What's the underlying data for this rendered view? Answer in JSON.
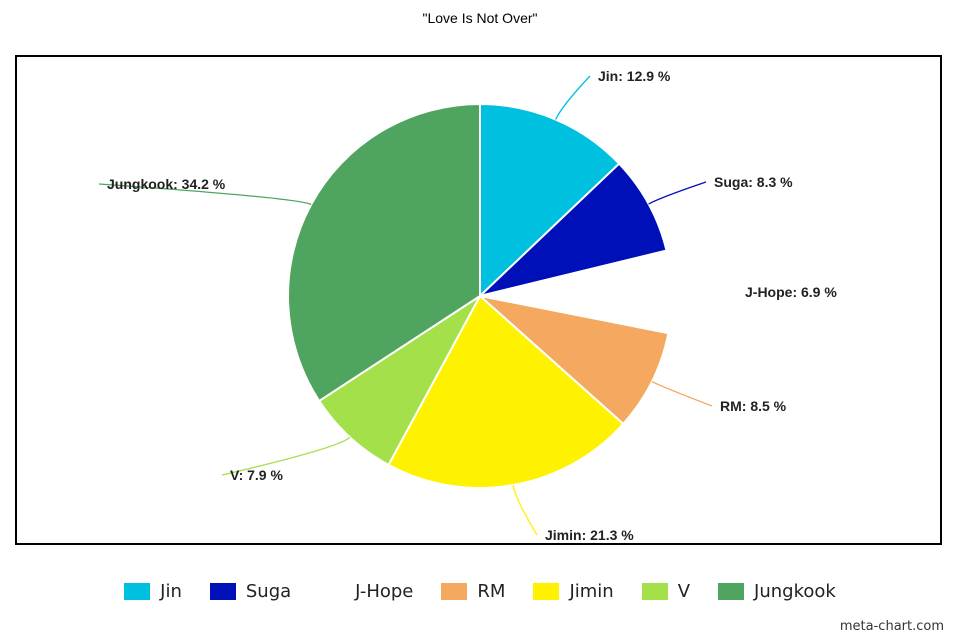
{
  "chart_data": {
    "type": "pie",
    "title": "\"Love Is Not Over\"",
    "slices": [
      {
        "name": "Jin",
        "value": 12.9,
        "label": "Jin: 12.9 %",
        "color": "#00c0e0"
      },
      {
        "name": "Suga",
        "value": 8.3,
        "label": "Suga: 8.3 %",
        "color": "#0010b8"
      },
      {
        "name": "J-Hope",
        "value": 6.9,
        "label": "J-Hope: 6.9 %",
        "color": "#ffffff"
      },
      {
        "name": "RM",
        "value": 8.5,
        "label": "RM: 8.5 %",
        "color": "#f5a960"
      },
      {
        "name": "Jimin",
        "value": 21.3,
        "label": "Jimin: 21.3 %",
        "color": "#fff200"
      },
      {
        "name": "V",
        "value": 7.9,
        "label": "V: 7.9 %",
        "color": "#a4e04a"
      },
      {
        "name": "Jungkook",
        "value": 34.2,
        "label": "Jungkook: 34.2 %",
        "color": "#4fa45f"
      }
    ],
    "legend_placement": "bottom"
  },
  "credit": "meta-chart.com"
}
